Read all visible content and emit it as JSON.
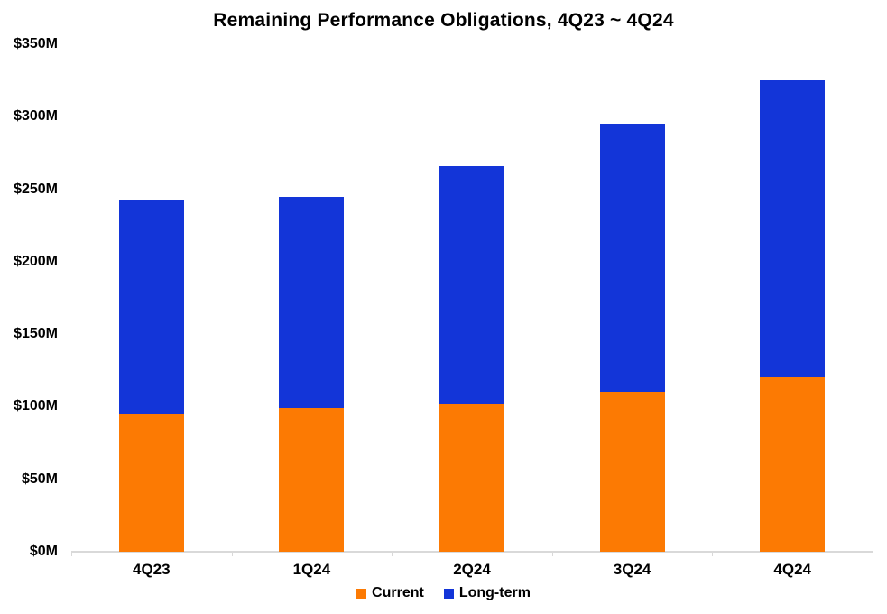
{
  "colors": {
    "current": "#FC7A03",
    "longterm": "#1335D8",
    "axis": "#D9D9D9",
    "text": "#000000",
    "background": "#FFFFFF"
  },
  "chart_data": {
    "type": "bar",
    "stacked": true,
    "title": "Remaining Performance Obligations, 4Q23 ~ 4Q24",
    "categories": [
      "4Q23",
      "1Q24",
      "2Q24",
      "3Q24",
      "4Q24"
    ],
    "series": [
      {
        "name": "Current",
        "color_key": "current",
        "values": [
          95,
          99,
          102,
          110,
          121
        ]
      },
      {
        "name": "Long-term",
        "color_key": "longterm",
        "values": [
          147,
          146,
          164,
          185,
          204
        ]
      }
    ],
    "totals": [
      242,
      245,
      266,
      295,
      325
    ],
    "xlabel": "",
    "ylabel": "",
    "ylim": [
      0,
      350
    ],
    "ytick_step": 50,
    "ytick_labels": [
      "$0M",
      "$50M",
      "$100M",
      "$150M",
      "$200M",
      "$250M",
      "$300M",
      "$350M"
    ],
    "grid": false,
    "legend_position": "bottom"
  }
}
